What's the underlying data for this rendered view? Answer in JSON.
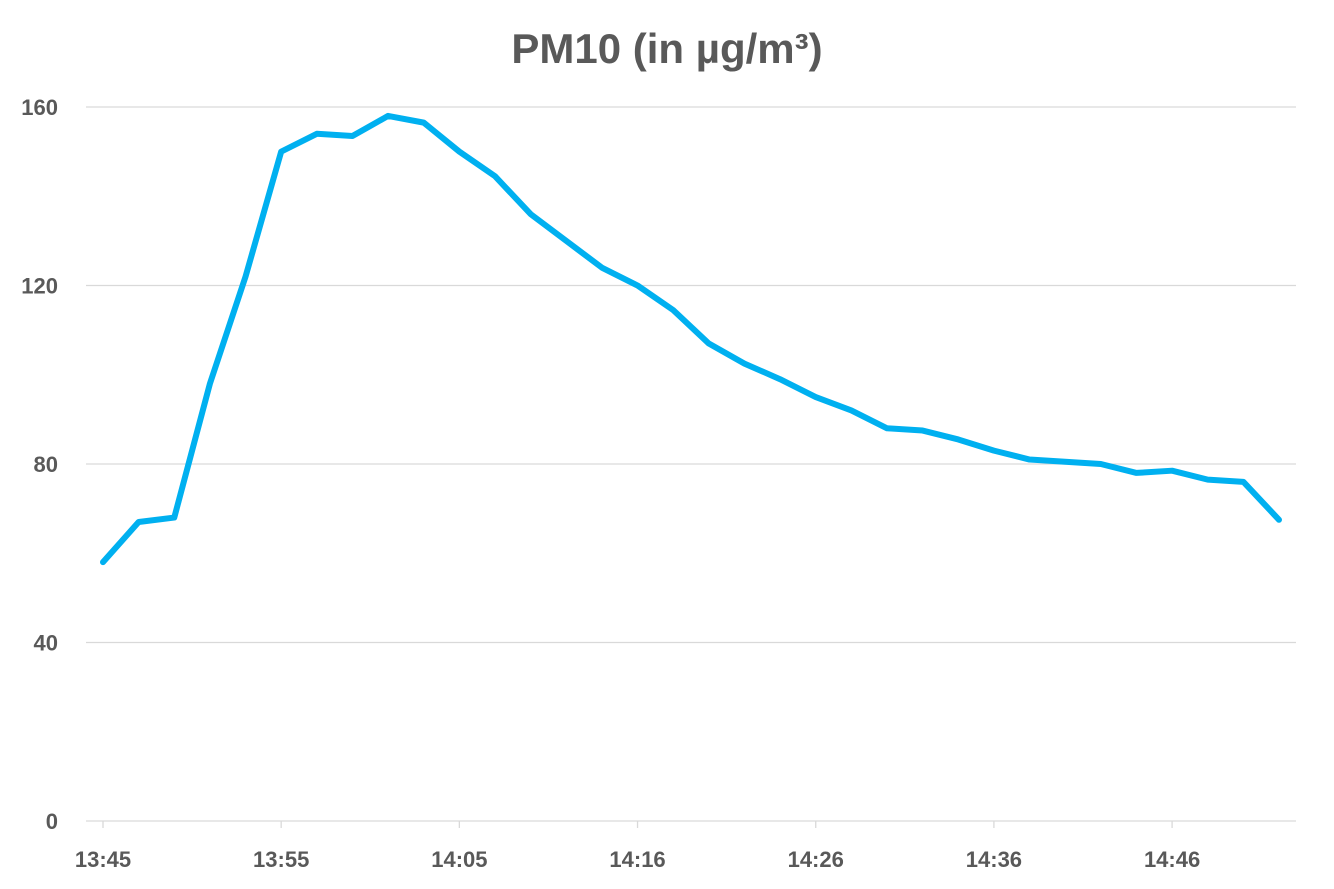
{
  "chart_data": {
    "type": "line",
    "title": "PM10 (in µg/m³)",
    "xlabel": "",
    "ylabel": "",
    "ylim": [
      0,
      160
    ],
    "y_ticks": [
      "0",
      "40",
      "80",
      "120",
      "160"
    ],
    "grid": true,
    "legend": "none",
    "color": "#00b0f0",
    "x_tick_labels": [
      "13:45",
      "13:55",
      "14:05",
      "14:16",
      "14:26",
      "14:36",
      "14:46"
    ],
    "x_tick_point_index": [
      0,
      5,
      10,
      15,
      20,
      25,
      30
    ],
    "series": [
      {
        "values": [
          58,
          67,
          68,
          98,
          122,
          150,
          154,
          153.5,
          158,
          156.5,
          150,
          144.5,
          136,
          130,
          124,
          120,
          114.5,
          107,
          102.5,
          99,
          95,
          92,
          88,
          87.5,
          85.5,
          83,
          81,
          80.5,
          80,
          78,
          78.5,
          76.5,
          76,
          67.5
        ]
      }
    ]
  }
}
